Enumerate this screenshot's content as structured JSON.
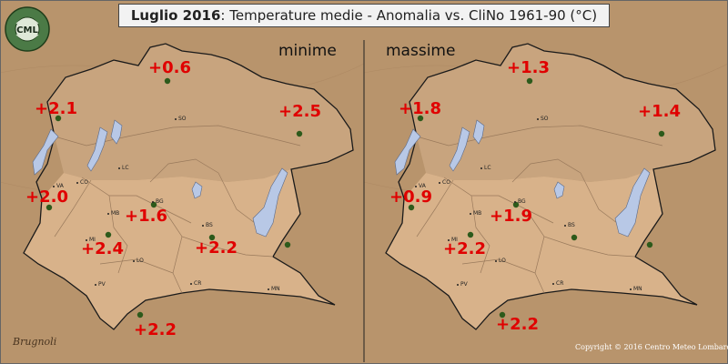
{
  "title": {
    "bold": "Luglio 2016",
    "rest": ": Temperature medie - Anomalia vs. CliNo 1961-90 (°C)"
  },
  "logo": {
    "initials": "CML",
    "ring_text": "CENTRO METEO LOMBARDO"
  },
  "colors": {
    "background": "#b8946c",
    "highlands": "#c8a47e",
    "lowlands": "#d4b08a",
    "lake": "#b8c8e6",
    "anomaly_text": "#e00000",
    "station_dot": "#2d5a1b"
  },
  "panels": [
    {
      "label": "minime",
      "anomalies": [
        "+0.6",
        "+2.1",
        "+2.5",
        "+2.0",
        "+1.6",
        "+2.4",
        "+2.2",
        "+2.2"
      ],
      "cities": [
        "SO",
        "LC",
        "CO",
        "VA",
        "BG",
        "MB",
        "BS",
        "MI",
        "LO",
        "MN",
        "PV",
        "CR"
      ]
    },
    {
      "label": "massime",
      "anomalies": [
        "+1.3",
        "+1.8",
        "+1.4",
        "+0.9",
        "+1.9",
        "+2.2",
        "+2.2"
      ],
      "cities": [
        "SO",
        "LC",
        "CO",
        "VA",
        "BG",
        "MB",
        "BS",
        "MI",
        "LO",
        "MN",
        "PV",
        "CR"
      ]
    }
  ],
  "copyright": "Copyright © 2016 Centro Meteo Lombardo",
  "signature": "Brugnoli"
}
